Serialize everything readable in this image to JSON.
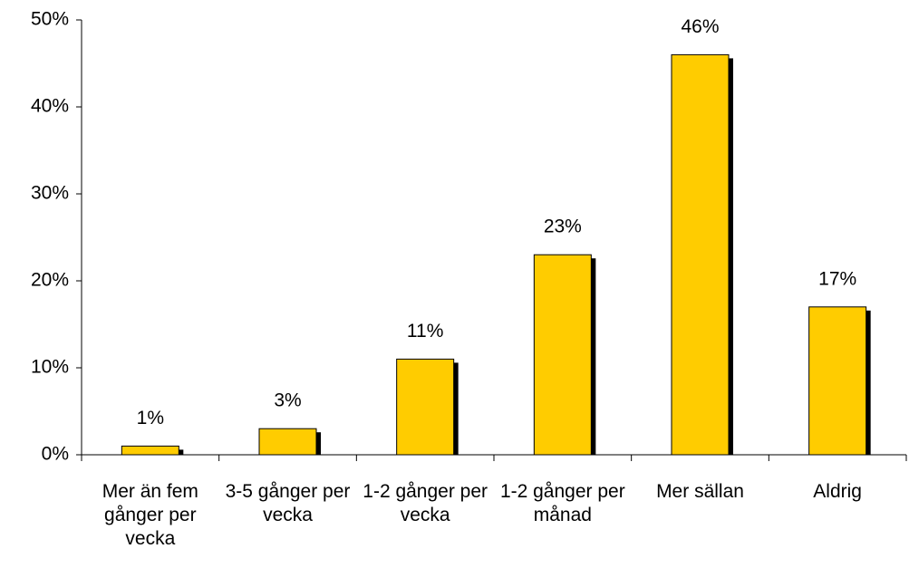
{
  "chart_data": {
    "type": "bar",
    "categories": [
      "Mer än fem gånger per vecka",
      "3-5 gånger per vecka",
      "1-2 gånger per vecka",
      "1-2 gånger per månad",
      "Mer sällan",
      "Aldrig"
    ],
    "values": [
      1,
      3,
      11,
      23,
      46,
      17
    ],
    "value_labels": [
      "1%",
      "3%",
      "11%",
      "23%",
      "46%",
      "17%"
    ],
    "color": "#ffcc00",
    "ylim": [
      0,
      50
    ],
    "yticks": [
      {
        "value": 0,
        "label": "0%"
      },
      {
        "value": 10,
        "label": "10%"
      },
      {
        "value": 20,
        "label": "20%"
      },
      {
        "value": 30,
        "label": "30%"
      },
      {
        "value": 40,
        "label": "40%"
      },
      {
        "value": 50,
        "label": "50%"
      }
    ]
  }
}
